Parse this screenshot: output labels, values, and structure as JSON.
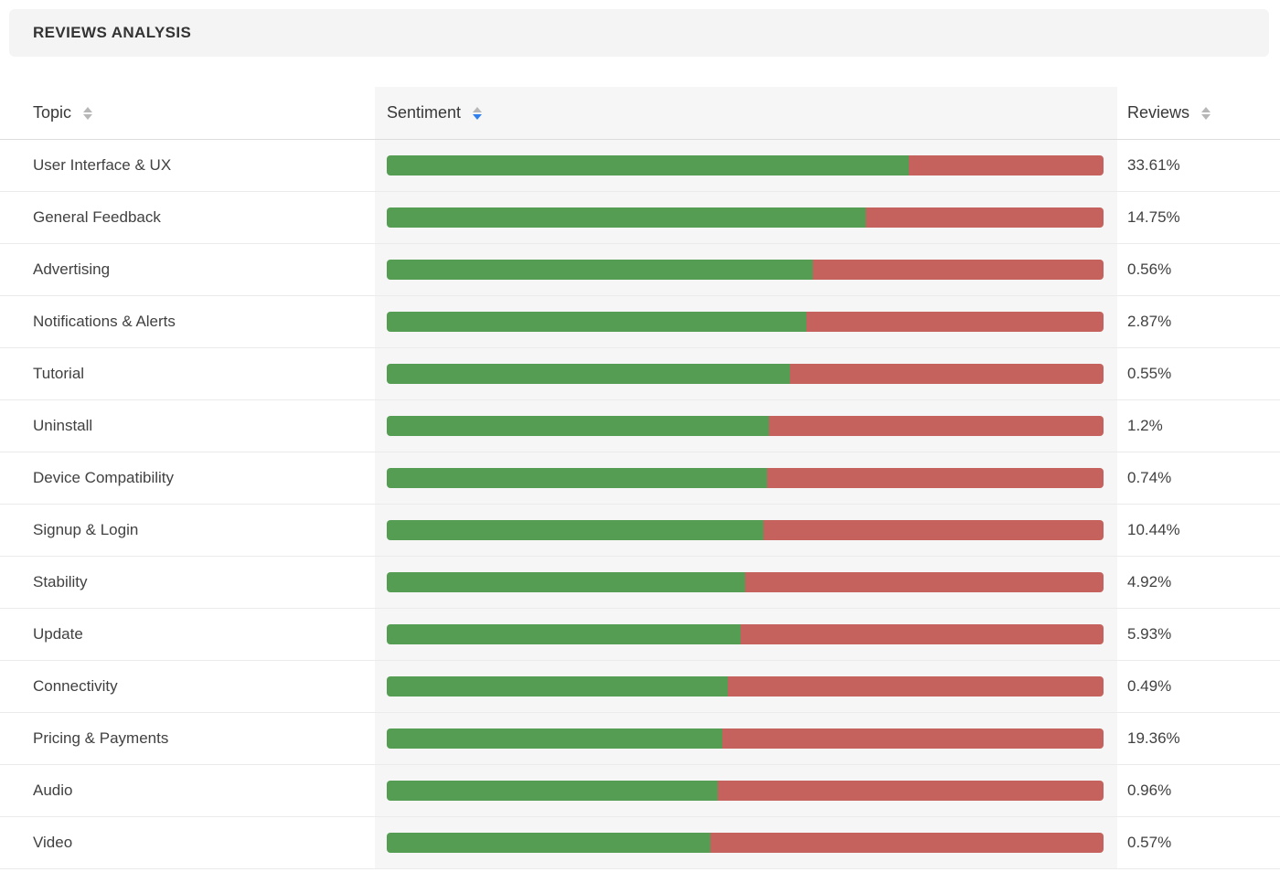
{
  "panel": {
    "title": "REVIEWS ANALYSIS"
  },
  "table": {
    "columns": [
      {
        "label": "Topic",
        "sort": "none"
      },
      {
        "label": "Sentiment",
        "sort": "desc"
      },
      {
        "label": "Reviews",
        "sort": "none"
      }
    ],
    "rows": [
      {
        "topic": "User Interface & UX",
        "positive_pct": 72.8,
        "negative_pct": 27.2,
        "reviews": "33.61%"
      },
      {
        "topic": "General Feedback",
        "positive_pct": 66.8,
        "negative_pct": 33.2,
        "reviews": "14.75%"
      },
      {
        "topic": "Advertising",
        "positive_pct": 59.4,
        "negative_pct": 40.6,
        "reviews": "0.56%"
      },
      {
        "topic": "Notifications & Alerts",
        "positive_pct": 58.5,
        "negative_pct": 41.5,
        "reviews": "2.87%"
      },
      {
        "topic": "Tutorial",
        "positive_pct": 56.2,
        "negative_pct": 43.8,
        "reviews": "0.55%"
      },
      {
        "topic": "Uninstall",
        "positive_pct": 53.3,
        "negative_pct": 46.7,
        "reviews": "1.2%"
      },
      {
        "topic": "Device Compatibility",
        "positive_pct": 53.1,
        "negative_pct": 46.9,
        "reviews": "0.74%"
      },
      {
        "topic": "Signup & Login",
        "positive_pct": 52.5,
        "negative_pct": 47.5,
        "reviews": "10.44%"
      },
      {
        "topic": "Stability",
        "positive_pct": 50.0,
        "negative_pct": 50.0,
        "reviews": "4.92%"
      },
      {
        "topic": "Update",
        "positive_pct": 49.4,
        "negative_pct": 50.6,
        "reviews": "5.93%"
      },
      {
        "topic": "Connectivity",
        "positive_pct": 47.6,
        "negative_pct": 52.4,
        "reviews": "0.49%"
      },
      {
        "topic": "Pricing & Payments",
        "positive_pct": 46.8,
        "negative_pct": 53.2,
        "reviews": "19.36%"
      },
      {
        "topic": "Audio",
        "positive_pct": 46.2,
        "negative_pct": 53.8,
        "reviews": "0.96%"
      },
      {
        "topic": "Video",
        "positive_pct": 45.1,
        "negative_pct": 54.9,
        "reviews": "0.57%"
      }
    ]
  },
  "colors": {
    "positive": "#549d52",
    "negative": "#c5625e",
    "sort_active": "#2f80ed",
    "sort_inactive": "#b7b7b7",
    "column_bg": "#f6f6f6",
    "panel_bg": "#f4f4f4"
  },
  "chart_data": {
    "type": "bar",
    "title": "REVIEWS ANALYSIS",
    "categories": [
      "User Interface & UX",
      "General Feedback",
      "Advertising",
      "Notifications & Alerts",
      "Tutorial",
      "Uninstall",
      "Device Compatibility",
      "Signup & Login",
      "Stability",
      "Update",
      "Connectivity",
      "Pricing & Payments",
      "Audio",
      "Video"
    ],
    "series": [
      {
        "name": "Positive sentiment %",
        "values": [
          72.8,
          66.8,
          59.4,
          58.5,
          56.2,
          53.3,
          53.1,
          52.5,
          50.0,
          49.4,
          47.6,
          46.8,
          46.2,
          45.1
        ]
      },
      {
        "name": "Negative sentiment %",
        "values": [
          27.2,
          33.2,
          40.6,
          41.5,
          43.8,
          46.7,
          46.9,
          47.5,
          50.0,
          50.6,
          52.4,
          53.2,
          53.8,
          54.9
        ]
      },
      {
        "name": "Reviews %",
        "values": [
          33.61,
          14.75,
          0.56,
          2.87,
          0.55,
          1.2,
          0.74,
          10.44,
          4.92,
          5.93,
          0.49,
          19.36,
          0.96,
          0.57
        ]
      }
    ],
    "layout": "horizontal stacked 100% bars, one per table row, sorted by positive sentiment descending",
    "xlim": [
      0,
      100
    ]
  }
}
